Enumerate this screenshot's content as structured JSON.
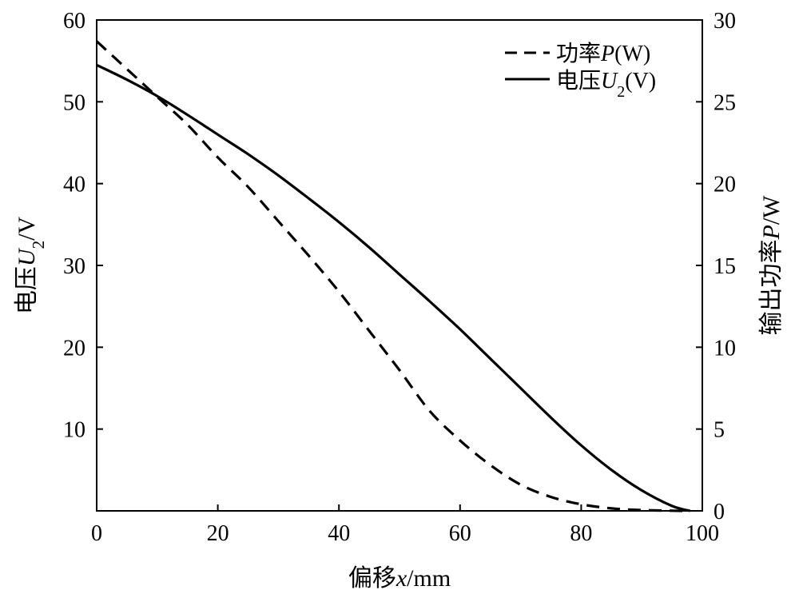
{
  "chart_data": {
    "type": "line",
    "x_label": {
      "pre": "偏移",
      "var": "x",
      "post": "/mm"
    },
    "y_left_label": {
      "pre": "电压",
      "var": "U",
      "sub": "2",
      "post": "/V"
    },
    "y_right_label": {
      "pre": "输出功率",
      "var": "P",
      "post": "/W"
    },
    "x_range": [
      0,
      100
    ],
    "y_left_range": [
      0,
      60
    ],
    "y_right_range": [
      0,
      30
    ],
    "x_ticks": [
      0,
      20,
      40,
      60,
      80,
      100
    ],
    "y_left_ticks": [
      10,
      20,
      30,
      40,
      50,
      60
    ],
    "y_right_ticks": [
      0,
      5,
      10,
      15,
      20,
      25,
      30
    ],
    "grid": false,
    "legend_position": "top-right",
    "series": [
      {
        "name": "功率P(W)",
        "legend": {
          "pre": "功率",
          "var": "P",
          "post": "(W)"
        },
        "axis": "right",
        "style": "dashed",
        "color": "#000000",
        "x": [
          0,
          5,
          10,
          15,
          20,
          25,
          30,
          35,
          40,
          45,
          50,
          55,
          60,
          65,
          70,
          75,
          80,
          85,
          90,
          95,
          98
        ],
        "y": [
          28.7,
          27.0,
          25.3,
          23.6,
          21.6,
          19.8,
          17.7,
          15.6,
          13.4,
          11.0,
          8.6,
          6.1,
          4.3,
          2.8,
          1.6,
          0.85,
          0.4,
          0.15,
          0.05,
          0.01,
          0.0
        ]
      },
      {
        "name": "电压U2(V)",
        "legend": {
          "pre": "电压",
          "var": "U",
          "sub": "2",
          "post": "(V)"
        },
        "axis": "left",
        "style": "solid",
        "color": "#000000",
        "x": [
          0,
          5,
          10,
          15,
          20,
          25,
          30,
          35,
          40,
          45,
          50,
          55,
          60,
          65,
          70,
          75,
          80,
          85,
          90,
          95,
          98
        ],
        "y": [
          54.5,
          52.7,
          50.7,
          48.4,
          46.0,
          43.6,
          41.0,
          38.2,
          35.3,
          32.2,
          28.9,
          25.6,
          22.2,
          18.6,
          15.0,
          11.4,
          8.0,
          5.0,
          2.5,
          0.6,
          0.0
        ]
      }
    ]
  }
}
